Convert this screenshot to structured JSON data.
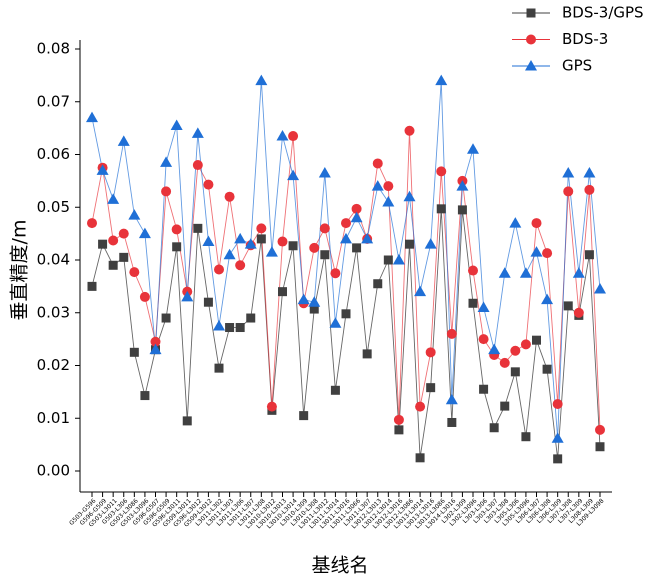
{
  "chart_data": {
    "type": "line",
    "xlabel": "基线名",
    "ylabel": "垂直精度/m",
    "categories": [
      "G503-G596",
      "G596-G509",
      "G503-L3011",
      "G503-L306",
      "G503-L3086",
      "G503-L3096",
      "G596-G507",
      "G596-G509",
      "G596-L3011",
      "G509-L3011",
      "G596-L3012",
      "G509-L3012",
      "L3011-L302",
      "L3011-L303",
      "L3011-L306",
      "L3011-L307",
      "L3011-L308",
      "L3010-L3012",
      "L3010-L3013",
      "L3010-L3014",
      "L3010-L309",
      "L3010-L308",
      "L3011-L3012",
      "L3011-L3014",
      "L3011-L3016",
      "L3011-L3066",
      "L3011-L307",
      "L3012-L3013",
      "L3012-L3014",
      "L3012-L3016",
      "L3012-L3086",
      "L3013-L3014",
      "L3013-L3016",
      "L3013-L3086",
      "L3014-L3016",
      "L302-L309",
      "L302-L3096",
      "L303-L306",
      "L303-L307",
      "L303-L308",
      "L305-L306",
      "L305-L3096",
      "L306-L307",
      "L306-L308",
      "L306-L309",
      "L307-L308",
      "L307-L309",
      "L308-L309",
      "L309-L3098"
    ],
    "series": [
      {
        "name": "BDS-3/GPS",
        "color": "#404040",
        "marker": "square",
        "values": [
          0.035,
          0.043,
          0.039,
          0.0405,
          0.0225,
          0.0143,
          0.023,
          0.029,
          0.0425,
          0.0095,
          0.046,
          0.032,
          0.0195,
          0.0272,
          0.0272,
          0.029,
          0.044,
          0.0115,
          0.034,
          0.0427,
          0.0105,
          0.0307,
          0.041,
          0.0153,
          0.0298,
          0.0423,
          0.0222,
          0.0355,
          0.04,
          0.0078,
          0.043,
          0.0025,
          0.0158,
          0.0497,
          0.0092,
          0.0495,
          0.0318,
          0.0155,
          0.0082,
          0.0123,
          0.0188,
          0.0065,
          0.0248,
          0.0193,
          0.0023,
          0.0313,
          0.0295,
          0.041,
          0.0046
        ]
      },
      {
        "name": "BDS-3",
        "color": "#e8333a",
        "marker": "circle",
        "values": [
          0.047,
          0.0575,
          0.0437,
          0.045,
          0.0377,
          0.033,
          0.0245,
          0.053,
          0.0458,
          0.034,
          0.058,
          0.0543,
          0.0382,
          0.052,
          0.039,
          0.0428,
          0.046,
          0.0122,
          0.0435,
          0.0635,
          0.0318,
          0.0423,
          0.046,
          0.0375,
          0.047,
          0.0497,
          0.044,
          0.0583,
          0.054,
          0.0097,
          0.0645,
          0.0122,
          0.0225,
          0.0568,
          0.026,
          0.055,
          0.038,
          0.025,
          0.022,
          0.0205,
          0.0228,
          0.024,
          0.047,
          0.0413,
          0.0127,
          0.053,
          0.03,
          0.0533,
          0.0078
        ]
      },
      {
        "name": "GPS",
        "color": "#1f6fd6",
        "marker": "triangle",
        "values": [
          0.067,
          0.057,
          0.0515,
          0.0625,
          0.0485,
          0.045,
          0.023,
          0.0585,
          0.0655,
          0.033,
          0.064,
          0.0435,
          0.0275,
          0.041,
          0.044,
          0.043,
          0.074,
          0.0415,
          0.0635,
          0.056,
          0.0325,
          0.032,
          0.0565,
          0.028,
          0.044,
          0.048,
          0.044,
          0.054,
          0.051,
          0.04,
          0.052,
          0.034,
          0.043,
          0.074,
          0.0135,
          0.054,
          0.061,
          0.031,
          0.023,
          0.0375,
          0.047,
          0.0375,
          0.0415,
          0.0325,
          0.0062,
          0.0565,
          0.0375,
          0.0565,
          0.0345
        ]
      }
    ],
    "ylim": [
      -0.004,
      0.08
    ],
    "yticks": [
      {
        "value": 0,
        "label": "0.00"
      },
      0.01,
      0.02,
      0.03,
      0.04,
      0.05,
      0.06,
      0.07,
      0.08
    ],
    "legend": "top-right"
  }
}
